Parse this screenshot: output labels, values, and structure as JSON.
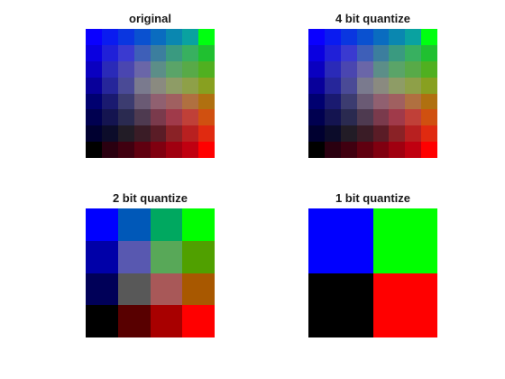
{
  "panels": [
    {
      "id": "original",
      "title": "original",
      "grid": [
        [
          "#0a00ff",
          "#0a1bf0",
          "#0a36e0",
          "#0a51d0",
          "#0a6cc0",
          "#0a87b0",
          "#0aa2a0",
          "#00ff10"
        ],
        [
          "#0a00e0",
          "#2020d8",
          "#3a3ad0",
          "#3e5fb8",
          "#3c7e9e",
          "#3a9a80",
          "#38b060",
          "#20c030"
        ],
        [
          "#0a00c0",
          "#2a2ab8",
          "#4a46b0",
          "#6a66a8",
          "#5c8e88",
          "#5aa468",
          "#58aa48",
          "#50b020"
        ],
        [
          "#08009a",
          "#26269a",
          "#4a4a96",
          "#7a7a8e",
          "#8a8a80",
          "#8e9c66",
          "#8ea048",
          "#88a020"
        ],
        [
          "#000070",
          "#1a1a70",
          "#3c3c70",
          "#6a5a74",
          "#906070",
          "#a06060",
          "#b07040",
          "#b07010"
        ],
        [
          "#000050",
          "#141450",
          "#2a2a50",
          "#4e3a50",
          "#7a3a4c",
          "#a03a4a",
          "#c04038",
          "#d05010"
        ],
        [
          "#000030",
          "#0c0c2a",
          "#221c26",
          "#3a1c26",
          "#5a1c26",
          "#8a2226",
          "#b82020",
          "#e02a10"
        ],
        [
          "#000000",
          "#2a0010",
          "#400010",
          "#600010",
          "#800010",
          "#a00010",
          "#c00010",
          "#ff0000"
        ]
      ]
    },
    {
      "id": "4-bit",
      "title": "4 bit quantize",
      "grid": [
        [
          "#0a00ff",
          "#0a1bf0",
          "#0a36e0",
          "#0a51d0",
          "#0a6cc0",
          "#0a87b0",
          "#0aa2a0",
          "#00ff10"
        ],
        [
          "#0a00e0",
          "#2020d8",
          "#3a3ad0",
          "#3e5fb8",
          "#3c7e9e",
          "#3a9a80",
          "#38b060",
          "#20c030"
        ],
        [
          "#0a00c0",
          "#2a2ab8",
          "#4a46b0",
          "#6a66a8",
          "#5c8e88",
          "#5aa468",
          "#58aa48",
          "#50b020"
        ],
        [
          "#08009a",
          "#26269a",
          "#4a4a96",
          "#7a7a8e",
          "#8a8a80",
          "#8e9c66",
          "#8ea048",
          "#88a020"
        ],
        [
          "#000070",
          "#1a1a70",
          "#3c3c70",
          "#6a5a74",
          "#906070",
          "#a06060",
          "#b07040",
          "#b07010"
        ],
        [
          "#000050",
          "#141450",
          "#2a2a50",
          "#4e3a50",
          "#7a3a4c",
          "#a03a4a",
          "#c04038",
          "#d05010"
        ],
        [
          "#000030",
          "#0c0c2a",
          "#221c26",
          "#3a1c26",
          "#5a1c26",
          "#8a2226",
          "#b82020",
          "#e02a10"
        ],
        [
          "#000000",
          "#2a0010",
          "#400010",
          "#600010",
          "#800010",
          "#a00010",
          "#c00010",
          "#ff0000"
        ]
      ]
    },
    {
      "id": "2-bit",
      "title": "2 bit quantize",
      "grid": [
        [
          "#0000ff",
          "#0058b8",
          "#00a860",
          "#00ff00"
        ],
        [
          "#0000a8",
          "#5858b0",
          "#58a858",
          "#50a000"
        ],
        [
          "#000058",
          "#585858",
          "#a85858",
          "#a85800"
        ],
        [
          "#000000",
          "#580000",
          "#a80000",
          "#ff0000"
        ]
      ]
    },
    {
      "id": "1-bit",
      "title": "1 bit quantize",
      "grid": [
        [
          "#0000ff",
          "#00ff00"
        ],
        [
          "#000000",
          "#ff0000"
        ]
      ]
    }
  ]
}
